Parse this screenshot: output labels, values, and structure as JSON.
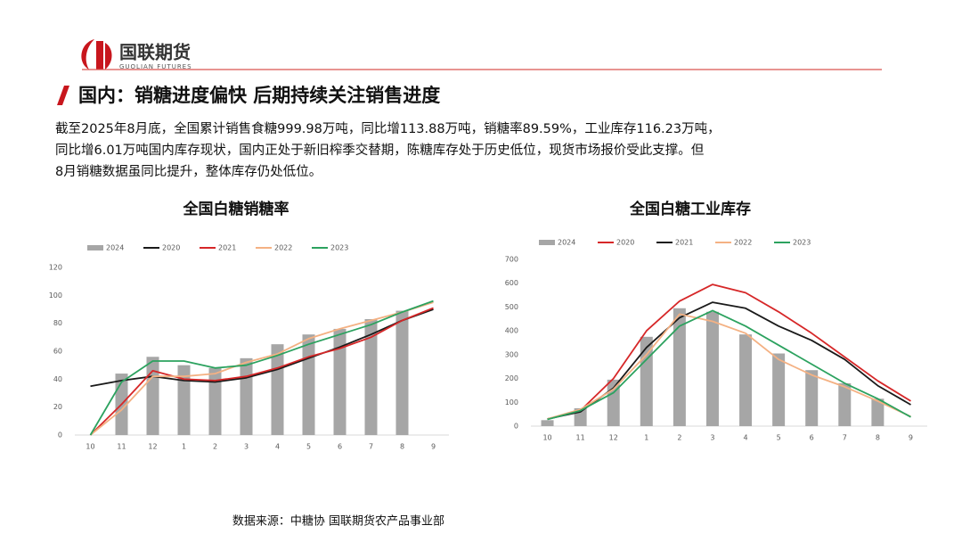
{
  "logo": {
    "name": "国联期货",
    "subname": "GUOLIAN FUTURES"
  },
  "heading": "国内：销糖进度偏快 后期持续关注销售进度",
  "body": {
    "lines": [
      "截至2025年8月底，全国累计销售食糖999.98万吨，同比增113.88万吨，销糖率89.59%，工业库存116.23万吨，",
      "同比增6.01万吨国内库存现状，国内正处于新旧榨季交替期，陈糖库存处于历史低位，现货市场报价受此支撑。但",
      "8月销糖数据虽同比提升，整体库存仍处低位。"
    ]
  },
  "source": "数据来源：中糖协 国联期货农产品事业部",
  "chart_data": [
    {
      "type": "combo",
      "title": "全国白糖销糖率",
      "categories": [
        "10",
        "11",
        "12",
        "1",
        "2",
        "3",
        "4",
        "5",
        "6",
        "7",
        "8",
        "9"
      ],
      "ylim": [
        0,
        120
      ],
      "yticks": [
        0,
        20,
        40,
        60,
        80,
        100,
        120
      ],
      "series": [
        {
          "name": "2024",
          "kind": "bar",
          "color": "#a6a6a6",
          "values": [
            null,
            44,
            56,
            50,
            48,
            55,
            65,
            72,
            76,
            83,
            89,
            null
          ]
        },
        {
          "name": "2020",
          "kind": "line",
          "color": "#1a1a1a",
          "values": [
            35,
            39,
            42,
            39,
            38,
            41,
            47,
            55,
            63,
            72,
            82,
            90
          ]
        },
        {
          "name": "2021",
          "kind": "line",
          "color": "#d62728",
          "values": [
            0,
            22,
            46,
            40,
            39,
            42,
            48,
            56,
            62,
            70,
            82,
            91
          ]
        },
        {
          "name": "2022",
          "kind": "line",
          "color": "#f4b183",
          "values": [
            0,
            18,
            42,
            42,
            44,
            52,
            58,
            69,
            76,
            82,
            88,
            95
          ]
        },
        {
          "name": "2023",
          "kind": "line",
          "color": "#2ca25f",
          "values": [
            0,
            38,
            53,
            53,
            48,
            50,
            57,
            65,
            72,
            79,
            88,
            96
          ]
        }
      ]
    },
    {
      "type": "combo",
      "title": "全国白糖工业库存",
      "categories": [
        "10",
        "11",
        "12",
        "1",
        "2",
        "3",
        "4",
        "5",
        "6",
        "7",
        "8",
        "9"
      ],
      "ylim": [
        0,
        700
      ],
      "yticks": [
        0,
        100,
        200,
        300,
        400,
        500,
        600,
        700
      ],
      "series": [
        {
          "name": "2024",
          "kind": "bar",
          "color": "#a6a6a6",
          "values": [
            25,
            75,
            195,
            375,
            495,
            480,
            385,
            305,
            235,
            180,
            115,
            null
          ]
        },
        {
          "name": "2020",
          "kind": "line",
          "color": "#d62728",
          "values": [
            30,
            65,
            200,
            400,
            525,
            595,
            560,
            480,
            390,
            290,
            190,
            105
          ]
        },
        {
          "name": "2021",
          "kind": "line",
          "color": "#1a1a1a",
          "values": [
            30,
            60,
            160,
            330,
            455,
            520,
            495,
            420,
            360,
            280,
            170,
            90
          ]
        },
        {
          "name": "2022",
          "kind": "line",
          "color": "#f4b183",
          "values": [
            30,
            70,
            155,
            300,
            470,
            440,
            390,
            280,
            215,
            165,
            105,
            40
          ]
        },
        {
          "name": "2023",
          "kind": "line",
          "color": "#2ca25f",
          "values": [
            28,
            65,
            140,
            280,
            420,
            485,
            420,
            340,
            260,
            180,
            115,
            38
          ]
        }
      ]
    }
  ]
}
